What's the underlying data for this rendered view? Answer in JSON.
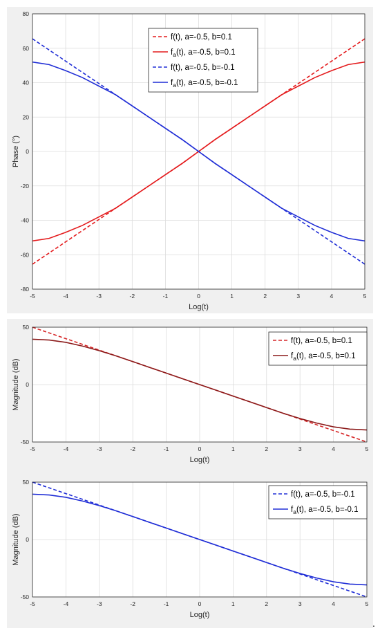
{
  "chart_data": [
    {
      "type": "line",
      "ylabel": "Phase (°)",
      "xlabel": "Log(t)",
      "xlim": [
        -5,
        5
      ],
      "ylim": [
        -80,
        80
      ],
      "xticks": [
        "-5",
        "-4",
        "-3",
        "-2",
        "-1",
        "0",
        "1",
        "2",
        "3",
        "4",
        "5"
      ],
      "yticks": [
        "80",
        "60",
        "40",
        "20",
        "0",
        "-20",
        "-40",
        "-60",
        "-80"
      ],
      "grid": true,
      "legend_position": "top",
      "x": [
        -5,
        -4.5,
        -4,
        -3.5,
        -3,
        -2.5,
        -2,
        -1.5,
        -1,
        -0.5,
        0,
        0.5,
        1,
        1.5,
        2,
        2.5,
        3,
        3.5,
        4,
        4.5,
        5
      ],
      "series": [
        {
          "legend_main": "f(t), a=-0.5, b=0.1",
          "legend_sub": "",
          "legend_rest": "",
          "color": "#e41a1c",
          "dash": true,
          "values": [
            -65.5,
            -59,
            -52.5,
            -46,
            -39.5,
            -33,
            -26.5,
            -20,
            -13.5,
            -7,
            0,
            7,
            13.5,
            20,
            26.5,
            33,
            39.5,
            46,
            52.5,
            59,
            65.5
          ]
        },
        {
          "legend_main": "f",
          "legend_sub": "a",
          "legend_rest": "(t), a=-0.5, b=0.1",
          "color": "#e41a1c",
          "dash": false,
          "values": [
            -52,
            -50.5,
            -47,
            -43,
            -38,
            -33,
            -26.5,
            -20,
            -13.5,
            -7,
            0,
            7,
            13.5,
            20,
            26.5,
            33,
            38,
            43,
            47,
            50.5,
            52
          ]
        },
        {
          "legend_main": "f(t), a=-0.5, b=-0.1",
          "legend_sub": "",
          "legend_rest": "",
          "color": "#1f2dd6",
          "dash": true,
          "values": [
            65.5,
            59,
            52.5,
            46,
            39.5,
            33,
            26.5,
            20,
            13.5,
            7,
            0,
            -7,
            -13.5,
            -20,
            -26.5,
            -33,
            -39.5,
            -46,
            -52.5,
            -59,
            -65.5
          ]
        },
        {
          "legend_main": "f",
          "legend_sub": "a",
          "legend_rest": "(t), a=-0.5, b=-0.1",
          "color": "#1f2dd6",
          "dash": false,
          "values": [
            52,
            50.5,
            47,
            43,
            38,
            33,
            26.5,
            20,
            13.5,
            7,
            0,
            -7,
            -13.5,
            -20,
            -26.5,
            -33,
            -38,
            -43,
            -47,
            -50.5,
            -52
          ]
        }
      ]
    },
    {
      "type": "line",
      "ylabel": "Magnitude (dB)",
      "xlabel": "Log(t)",
      "xlim": [
        -5,
        5
      ],
      "ylim": [
        -50,
        50
      ],
      "xticks": [
        "-5",
        "-4",
        "-3",
        "-2",
        "-1",
        "0",
        "1",
        "2",
        "3",
        "4",
        "5"
      ],
      "yticks": [
        "50",
        "0",
        "-50"
      ],
      "grid": true,
      "legend_position": "top-right",
      "x": [
        -5,
        -4.5,
        -4,
        -3.5,
        -3,
        -2.5,
        -2,
        -1.5,
        -1,
        -0.5,
        0,
        0.5,
        1,
        1.5,
        2,
        2.5,
        3,
        3.5,
        4,
        4.5,
        5
      ],
      "series": [
        {
          "legend_main": "f(t), a=-0.5, b=0.1",
          "legend_sub": "",
          "legend_rest": "",
          "color": "#d62728",
          "dash": true,
          "values": [
            50,
            45,
            40,
            35,
            30,
            25,
            20,
            15,
            10,
            5,
            0,
            -5,
            -10,
            -15,
            -20,
            -25,
            -30,
            -35,
            -40,
            -45,
            -50
          ]
        },
        {
          "legend_main": "f",
          "legend_sub": "a",
          "legend_rest": "(t), a=-0.5, b=0.1",
          "color": "#8b1a1a",
          "dash": false,
          "values": [
            39.5,
            38.8,
            36.8,
            33.5,
            29.5,
            25,
            20,
            15,
            10,
            5,
            0,
            -5,
            -10,
            -15,
            -20,
            -25,
            -29.5,
            -33.5,
            -36.8,
            -38.8,
            -39.5
          ]
        }
      ]
    },
    {
      "type": "line",
      "ylabel": "Magnitude (dB)",
      "xlabel": "Log(t)",
      "xlim": [
        -5,
        5
      ],
      "ylim": [
        -50,
        50
      ],
      "xticks": [
        "-5",
        "-4",
        "-3",
        "-2",
        "-1",
        "0",
        "1",
        "2",
        "3",
        "4",
        "5"
      ],
      "yticks": [
        "50",
        "0",
        "-50"
      ],
      "grid": true,
      "legend_position": "top-right",
      "x": [
        -5,
        -4.5,
        -4,
        -3.5,
        -3,
        -2.5,
        -2,
        -1.5,
        -1,
        -0.5,
        0,
        0.5,
        1,
        1.5,
        2,
        2.5,
        3,
        3.5,
        4,
        4.5,
        5
      ],
      "series": [
        {
          "legend_main": "f(t), a=-0.5, b=-0.1",
          "legend_sub": "",
          "legend_rest": "",
          "color": "#1f2dd6",
          "dash": true,
          "values": [
            50,
            45,
            40,
            35,
            30,
            25,
            20,
            15,
            10,
            5,
            0,
            -5,
            -10,
            -15,
            -20,
            -25,
            -30,
            -35,
            -40,
            -45,
            -50
          ]
        },
        {
          "legend_main": "f",
          "legend_sub": "a",
          "legend_rest": "(t), a=-0.5, b=-0.1",
          "color": "#1f2dd6",
          "dash": false,
          "values": [
            39.5,
            38.8,
            36.8,
            33.5,
            29.5,
            25,
            20,
            15,
            10,
            5,
            0,
            -5,
            -10,
            -15,
            -20,
            -25,
            -29.5,
            -33.5,
            -36.8,
            -38.8,
            -39.5
          ]
        }
      ]
    }
  ],
  "trailing_mark": "."
}
